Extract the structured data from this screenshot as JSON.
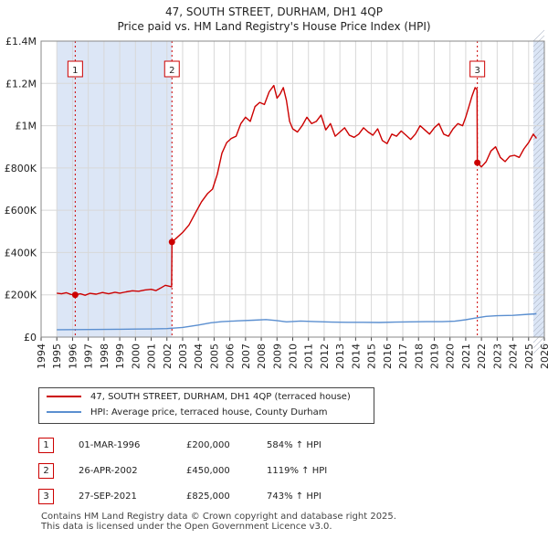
{
  "title_line1": "47, SOUTH STREET, DURHAM, DH1 4QP",
  "title_line2": "Price paid vs. HM Land Registry's House Price Index (HPI)",
  "chart_data": {
    "type": "line",
    "xlim": [
      1994,
      2026
    ],
    "ylim": [
      0,
      1400000
    ],
    "y_ticks": [
      {
        "value": 0,
        "label": "£0"
      },
      {
        "value": 200000,
        "label": "£200K"
      },
      {
        "value": 400000,
        "label": "£400K"
      },
      {
        "value": 600000,
        "label": "£600K"
      },
      {
        "value": 800000,
        "label": "£800K"
      },
      {
        "value": 1000000,
        "label": "£1M"
      },
      {
        "value": 1200000,
        "label": "£1.2M"
      },
      {
        "value": 1400000,
        "label": "£1.4M"
      }
    ],
    "x_ticks": [
      "1994",
      "1995",
      "1996",
      "1997",
      "1998",
      "1999",
      "2000",
      "2001",
      "2002",
      "2003",
      "2004",
      "2005",
      "2006",
      "2007",
      "2008",
      "2009",
      "2010",
      "2011",
      "2012",
      "2013",
      "2014",
      "2015",
      "2016",
      "2017",
      "2018",
      "2019",
      "2020",
      "2021",
      "2022",
      "2023",
      "2024",
      "2025",
      "2026"
    ],
    "shaded_ranges": [
      [
        1995.0,
        2002.32
      ],
      [
        2025.3,
        2026.0
      ]
    ],
    "sales": [
      {
        "label": "1",
        "x": 1996.17,
        "y": 200000
      },
      {
        "label": "2",
        "x": 2002.32,
        "y": 450000
      },
      {
        "label": "3",
        "x": 2021.74,
        "y": 825000
      }
    ],
    "series": [
      {
        "name": "47, SOUTH STREET, DURHAM, DH1 4QP (terraced house)",
        "color": "#cc0000",
        "points": [
          [
            1995.0,
            208000
          ],
          [
            1995.3,
            205000
          ],
          [
            1995.6,
            210000
          ],
          [
            1995.9,
            202000
          ],
          [
            1996.17,
            200000
          ],
          [
            1996.5,
            205000
          ],
          [
            1996.8,
            198000
          ],
          [
            1997.1,
            207000
          ],
          [
            1997.5,
            203000
          ],
          [
            1997.9,
            211000
          ],
          [
            1998.3,
            205000
          ],
          [
            1998.7,
            212000
          ],
          [
            1999.0,
            208000
          ],
          [
            1999.4,
            214000
          ],
          [
            1999.8,
            219000
          ],
          [
            2000.2,
            217000
          ],
          [
            2000.6,
            223000
          ],
          [
            2001.0,
            226000
          ],
          [
            2001.3,
            220000
          ],
          [
            2001.6,
            232000
          ],
          [
            2001.9,
            245000
          ],
          [
            2002.3,
            238000
          ],
          [
            2002.32,
            450000
          ],
          [
            2002.6,
            468000
          ],
          [
            2003.0,
            495000
          ],
          [
            2003.4,
            530000
          ],
          [
            2003.8,
            585000
          ],
          [
            2004.2,
            640000
          ],
          [
            2004.6,
            680000
          ],
          [
            2004.9,
            700000
          ],
          [
            2005.2,
            770000
          ],
          [
            2005.5,
            870000
          ],
          [
            2005.8,
            920000
          ],
          [
            2006.1,
            940000
          ],
          [
            2006.4,
            950000
          ],
          [
            2006.7,
            1010000
          ],
          [
            2007.0,
            1040000
          ],
          [
            2007.3,
            1020000
          ],
          [
            2007.6,
            1090000
          ],
          [
            2007.9,
            1110000
          ],
          [
            2008.2,
            1100000
          ],
          [
            2008.5,
            1160000
          ],
          [
            2008.8,
            1190000
          ],
          [
            2009.0,
            1130000
          ],
          [
            2009.2,
            1150000
          ],
          [
            2009.4,
            1180000
          ],
          [
            2009.6,
            1120000
          ],
          [
            2009.8,
            1020000
          ],
          [
            2010.0,
            985000
          ],
          [
            2010.3,
            970000
          ],
          [
            2010.6,
            1000000
          ],
          [
            2010.9,
            1040000
          ],
          [
            2011.2,
            1010000
          ],
          [
            2011.5,
            1020000
          ],
          [
            2011.8,
            1050000
          ],
          [
            2012.1,
            980000
          ],
          [
            2012.4,
            1010000
          ],
          [
            2012.7,
            950000
          ],
          [
            2013.0,
            970000
          ],
          [
            2013.3,
            990000
          ],
          [
            2013.6,
            955000
          ],
          [
            2013.9,
            945000
          ],
          [
            2014.2,
            960000
          ],
          [
            2014.5,
            990000
          ],
          [
            2014.8,
            970000
          ],
          [
            2015.1,
            955000
          ],
          [
            2015.4,
            985000
          ],
          [
            2015.7,
            930000
          ],
          [
            2016.0,
            915000
          ],
          [
            2016.3,
            960000
          ],
          [
            2016.6,
            950000
          ],
          [
            2016.9,
            975000
          ],
          [
            2017.2,
            955000
          ],
          [
            2017.5,
            935000
          ],
          [
            2017.8,
            960000
          ],
          [
            2018.1,
            1000000
          ],
          [
            2018.4,
            980000
          ],
          [
            2018.7,
            960000
          ],
          [
            2019.0,
            990000
          ],
          [
            2019.3,
            1010000
          ],
          [
            2019.6,
            960000
          ],
          [
            2019.9,
            950000
          ],
          [
            2020.2,
            985000
          ],
          [
            2020.5,
            1010000
          ],
          [
            2020.8,
            1000000
          ],
          [
            2021.0,
            1040000
          ],
          [
            2021.2,
            1090000
          ],
          [
            2021.4,
            1140000
          ],
          [
            2021.6,
            1180000
          ],
          [
            2021.72,
            1170000
          ],
          [
            2021.74,
            825000
          ],
          [
            2022.0,
            805000
          ],
          [
            2022.3,
            830000
          ],
          [
            2022.6,
            880000
          ],
          [
            2022.9,
            900000
          ],
          [
            2023.2,
            850000
          ],
          [
            2023.5,
            830000
          ],
          [
            2023.8,
            855000
          ],
          [
            2024.1,
            860000
          ],
          [
            2024.4,
            850000
          ],
          [
            2024.7,
            890000
          ],
          [
            2025.0,
            920000
          ],
          [
            2025.3,
            960000
          ],
          [
            2025.5,
            940000
          ]
        ]
      },
      {
        "name": "HPI: Average price, terraced house, County Durham",
        "color": "#5b8fd0",
        "points": [
          [
            1995.0,
            35000
          ],
          [
            1996.0,
            35500
          ],
          [
            1997.0,
            36000
          ],
          [
            1998.0,
            36500
          ],
          [
            1999.0,
            37000
          ],
          [
            2000.0,
            38000
          ],
          [
            2001.0,
            38500
          ],
          [
            2002.0,
            40000
          ],
          [
            2003.0,
            46000
          ],
          [
            2004.0,
            57000
          ],
          [
            2004.8,
            68000
          ],
          [
            2005.5,
            73000
          ],
          [
            2006.5,
            77000
          ],
          [
            2007.5,
            80000
          ],
          [
            2008.3,
            83000
          ],
          [
            2009.0,
            78000
          ],
          [
            2009.6,
            72000
          ],
          [
            2010.5,
            76000
          ],
          [
            2011.5,
            73000
          ],
          [
            2012.5,
            71000
          ],
          [
            2013.5,
            70000
          ],
          [
            2014.5,
            70000
          ],
          [
            2015.5,
            69000
          ],
          [
            2016.5,
            71000
          ],
          [
            2017.5,
            72000
          ],
          [
            2018.5,
            73000
          ],
          [
            2019.5,
            73000
          ],
          [
            2020.3,
            75000
          ],
          [
            2021.0,
            82000
          ],
          [
            2021.6,
            90000
          ],
          [
            2022.3,
            98000
          ],
          [
            2023.0,
            101000
          ],
          [
            2024.0,
            103000
          ],
          [
            2025.0,
            108000
          ],
          [
            2025.5,
            110000
          ]
        ]
      }
    ]
  },
  "legend": {
    "property": "47, SOUTH STREET, DURHAM, DH1 4QP (terraced house)",
    "hpi": "HPI: Average price, terraced house, County Durham"
  },
  "transactions": [
    {
      "num": "1",
      "date": "01-MAR-1996",
      "price": "£200,000",
      "hpi": "584% ↑ HPI"
    },
    {
      "num": "2",
      "date": "26-APR-2002",
      "price": "£450,000",
      "hpi": "1119% ↑ HPI"
    },
    {
      "num": "3",
      "date": "27-SEP-2021",
      "price": "£825,000",
      "hpi": "743% ↑ HPI"
    }
  ],
  "footer_line1": "Contains HM Land Registry data © Crown copyright and database right 2025.",
  "footer_line2": "This data is licensed under the Open Government Licence v3.0."
}
